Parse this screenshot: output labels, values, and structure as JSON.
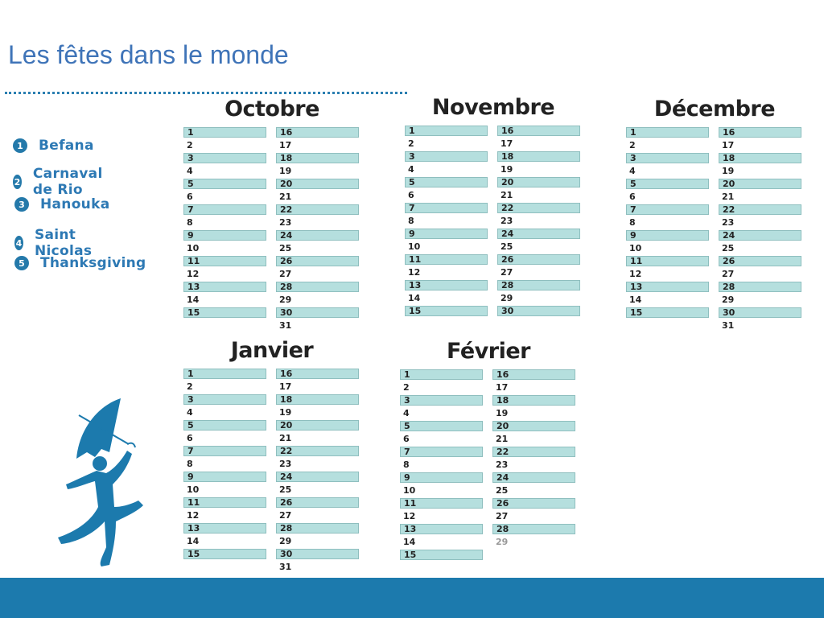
{
  "title": "Les fêtes dans le monde",
  "legend": [
    {
      "num": "1",
      "label": "Befana"
    },
    {
      "num": "2",
      "label": "Carnaval de Rio"
    },
    {
      "num": "3",
      "label": "Hanouka"
    },
    {
      "num": "4",
      "label": "Saint Nicolas"
    },
    {
      "num": "5",
      "label": "Thanksgiving"
    }
  ],
  "months": [
    {
      "name": "Octobre",
      "days": 31
    },
    {
      "name": "Novembre",
      "days": 30
    },
    {
      "name": "Décembre",
      "days": 31
    },
    {
      "name": "Janvier",
      "days": 31
    },
    {
      "name": "Février",
      "days": 29
    }
  ],
  "colors": {
    "accent": "#1c7aad",
    "title": "#3f74b8",
    "shade": "#b5dfde"
  },
  "icons": {
    "figure": "person-with-umbrella-silhouette-icon"
  }
}
